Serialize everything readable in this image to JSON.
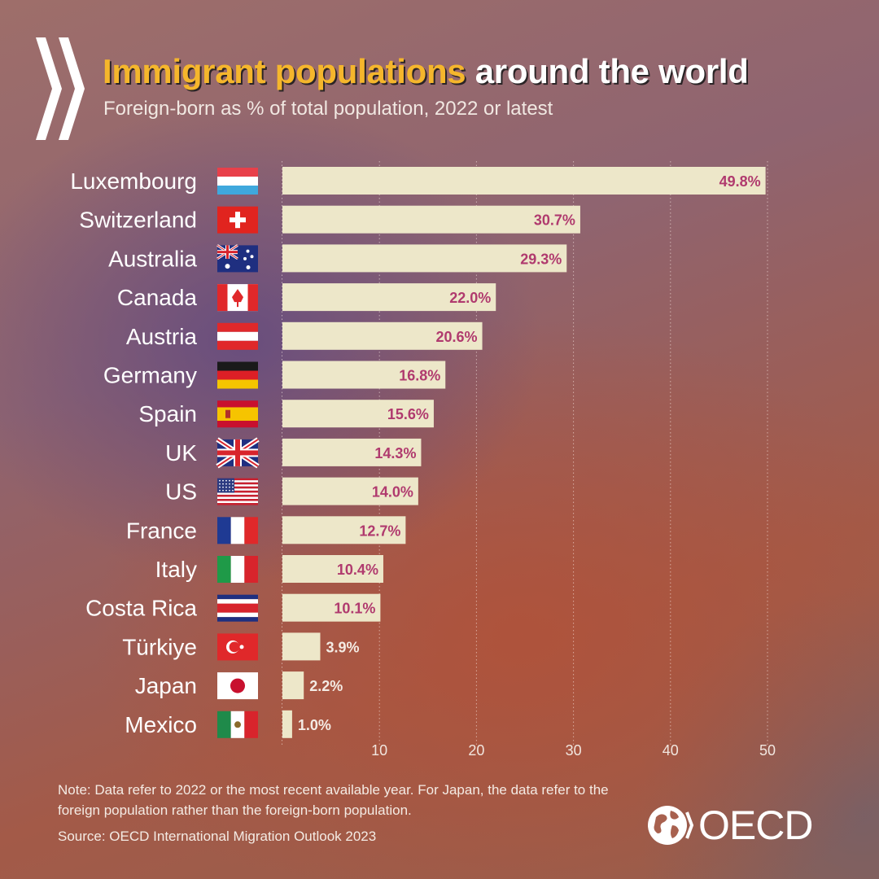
{
  "header": {
    "title_highlight": "Immigrant populations",
    "title_rest": " around the world",
    "subtitle": "Foreign-born as % of total population, 2022 or latest"
  },
  "footer": {
    "note": "Note:  Data refer to 2022 or the most recent available year. For Japan, the data refer to the foreign population rather than the foreign-born population.",
    "source": "Source: OECD International Migration Outlook 2023",
    "logo_text": "OECD"
  },
  "colors": {
    "bar": "#ede7c9",
    "label_inside": "#b03a6e",
    "label_outside": "#f4ebe4",
    "title_highlight": "#f5b62c"
  },
  "chart_data": {
    "type": "bar",
    "orientation": "horizontal",
    "title": "Immigrant populations around the world",
    "subtitle": "Foreign-born as % of total population, 2022 or latest",
    "categories": [
      "Luxembourg",
      "Switzerland",
      "Australia",
      "Canada",
      "Austria",
      "Germany",
      "Spain",
      "UK",
      "US",
      "France",
      "Italy",
      "Costa Rica",
      "Türkiye",
      "Japan",
      "Mexico"
    ],
    "values": [
      49.8,
      30.7,
      29.3,
      22.0,
      20.6,
      16.8,
      15.6,
      14.3,
      14.0,
      12.7,
      10.4,
      10.1,
      3.9,
      2.2,
      1.0
    ],
    "value_labels": [
      "49.8%",
      "30.7%",
      "29.3%",
      "22.0%",
      "20.6%",
      "16.8%",
      "15.6%",
      "14.3%",
      "14.0%",
      "12.7%",
      "10.4%",
      "10.1%",
      "3.9%",
      "2.2%",
      "1.0%"
    ],
    "flags": [
      "luxembourg-flag",
      "switzerland-flag",
      "australia-flag",
      "canada-flag",
      "austria-flag",
      "germany-flag",
      "spain-flag",
      "uk-flag",
      "us-flag",
      "france-flag",
      "italy-flag",
      "costa-rica-flag",
      "turkiye-flag",
      "japan-flag",
      "mexico-flag"
    ],
    "xticks": [
      10,
      20,
      30,
      40,
      50
    ],
    "xlim": [
      0,
      50
    ],
    "grid": "vertical dotted",
    "xlabel": "",
    "ylabel": ""
  }
}
